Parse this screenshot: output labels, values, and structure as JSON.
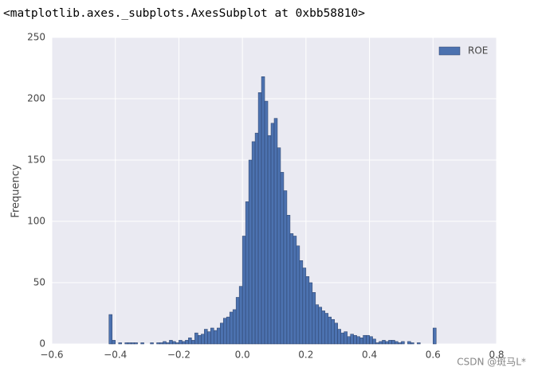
{
  "header": "<matplotlib.axes._subplots.AxesSubplot at 0xbb58810>",
  "watermark": "CSDN @斑马L*",
  "chart_data": {
    "type": "histogram",
    "y_label": "Frequency",
    "legend": "upper right",
    "grid": true,
    "series": [
      {
        "name": "ROE",
        "color": "#4c72b0",
        "values": [
          24,
          3,
          0,
          1,
          0,
          1,
          1,
          1,
          1,
          0,
          1,
          0,
          0,
          1,
          0,
          1,
          1,
          2,
          1,
          3,
          2,
          1,
          3,
          2,
          3,
          5,
          3,
          9,
          7,
          8,
          12,
          10,
          13,
          11,
          13,
          17,
          21,
          22,
          26,
          28,
          38,
          47,
          88,
          116,
          150,
          165,
          172,
          205,
          218,
          198,
          170,
          180,
          184,
          160,
          140,
          125,
          105,
          90,
          88,
          80,
          68,
          62,
          55,
          50,
          42,
          32,
          30,
          27,
          25,
          22,
          20,
          17,
          12,
          9,
          10,
          6,
          8,
          7,
          6,
          5,
          7,
          7,
          6,
          4,
          1,
          2,
          3,
          2,
          3,
          3,
          2,
          1,
          2,
          0,
          2,
          1,
          0,
          1,
          0,
          0,
          0,
          0,
          13
        ]
      }
    ],
    "bins": [
      -0.42,
      -0.41,
      -0.4,
      -0.39,
      -0.38,
      -0.37,
      -0.36,
      -0.35,
      -0.34,
      -0.33,
      -0.32,
      -0.31,
      -0.3,
      -0.29,
      -0.28,
      -0.27,
      -0.26,
      -0.25,
      -0.24,
      -0.23,
      -0.22,
      -0.21,
      -0.2,
      -0.19,
      -0.18,
      -0.17,
      -0.16,
      -0.15,
      -0.14,
      -0.13,
      -0.12,
      -0.11,
      -0.1,
      -0.09,
      -0.08,
      -0.07,
      -0.06,
      -0.05,
      -0.04,
      -0.03,
      -0.02,
      -0.01,
      0,
      0.01,
      0.02,
      0.03,
      0.04,
      0.05,
      0.06,
      0.07,
      0.08,
      0.09,
      0.1,
      0.11,
      0.12,
      0.13,
      0.14,
      0.15,
      0.16,
      0.17,
      0.18,
      0.19,
      0.2,
      0.21,
      0.22,
      0.23,
      0.24,
      0.25,
      0.26,
      0.27,
      0.28,
      0.29,
      0.3,
      0.31,
      0.32,
      0.33,
      0.34,
      0.35,
      0.36,
      0.37,
      0.38,
      0.39,
      0.4,
      0.41,
      0.42,
      0.43,
      0.44,
      0.45,
      0.46,
      0.47,
      0.48,
      0.49,
      0.5,
      0.51,
      0.52,
      0.53,
      0.54,
      0.55,
      0.56,
      0.57,
      0.58,
      0.59,
      0.6,
      0.61
    ],
    "xlim": [
      -0.6,
      0.8
    ],
    "xticks": [
      {
        "value": -0.6,
        "label": "−0.6"
      },
      {
        "value": -0.4,
        "label": "−0.4"
      },
      {
        "value": -0.2,
        "label": "−0.2"
      },
      {
        "value": 0,
        "label": "0.0"
      },
      0.2,
      0.4,
      0.6,
      0.8
    ],
    "ylim": [
      0,
      250
    ],
    "yticks": [
      0,
      50,
      100,
      150,
      200,
      250
    ]
  }
}
